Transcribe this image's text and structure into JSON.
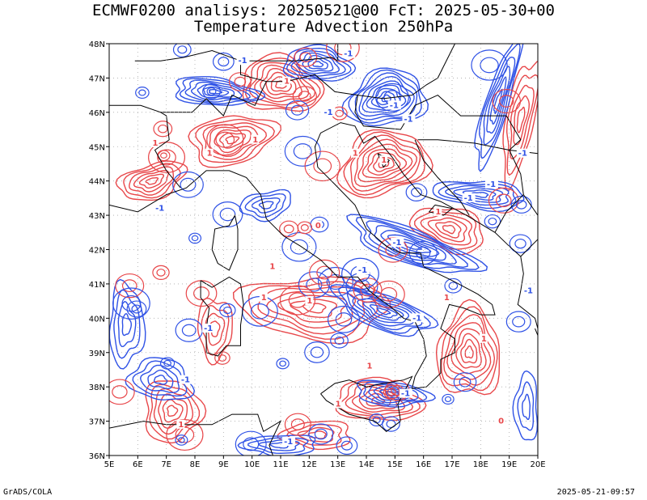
{
  "header": {
    "title_line1": "ECMWF0200 analisys: 20250521@00 FcT: 2025-05-30+00",
    "title_line2": "Temperature Advection 250hPa"
  },
  "footer": {
    "left": "GrADS/COLA",
    "right": "2025-05-21-09:57"
  },
  "map": {
    "lon_range": [
      5,
      20
    ],
    "lat_range": [
      36,
      48
    ],
    "lon_labels": [
      "5E",
      "6E",
      "7E",
      "8E",
      "9E",
      "10E",
      "11E",
      "12E",
      "13E",
      "14E",
      "15E",
      "16E",
      "17E",
      "18E",
      "19E",
      "20E"
    ],
    "lat_labels": [
      "36N",
      "37N",
      "38N",
      "39N",
      "40N",
      "41N",
      "42N",
      "43N",
      "44N",
      "45N",
      "46N",
      "47N",
      "48N"
    ],
    "grid": true,
    "colors": {
      "warm_advection": "#e8474a",
      "cold_advection": "#2f52e6",
      "coastline": "#000000",
      "grid": "#aaaaaa"
    },
    "contour_labels": {
      "positive": "1",
      "negative": "-1",
      "zero": "0"
    }
  }
}
